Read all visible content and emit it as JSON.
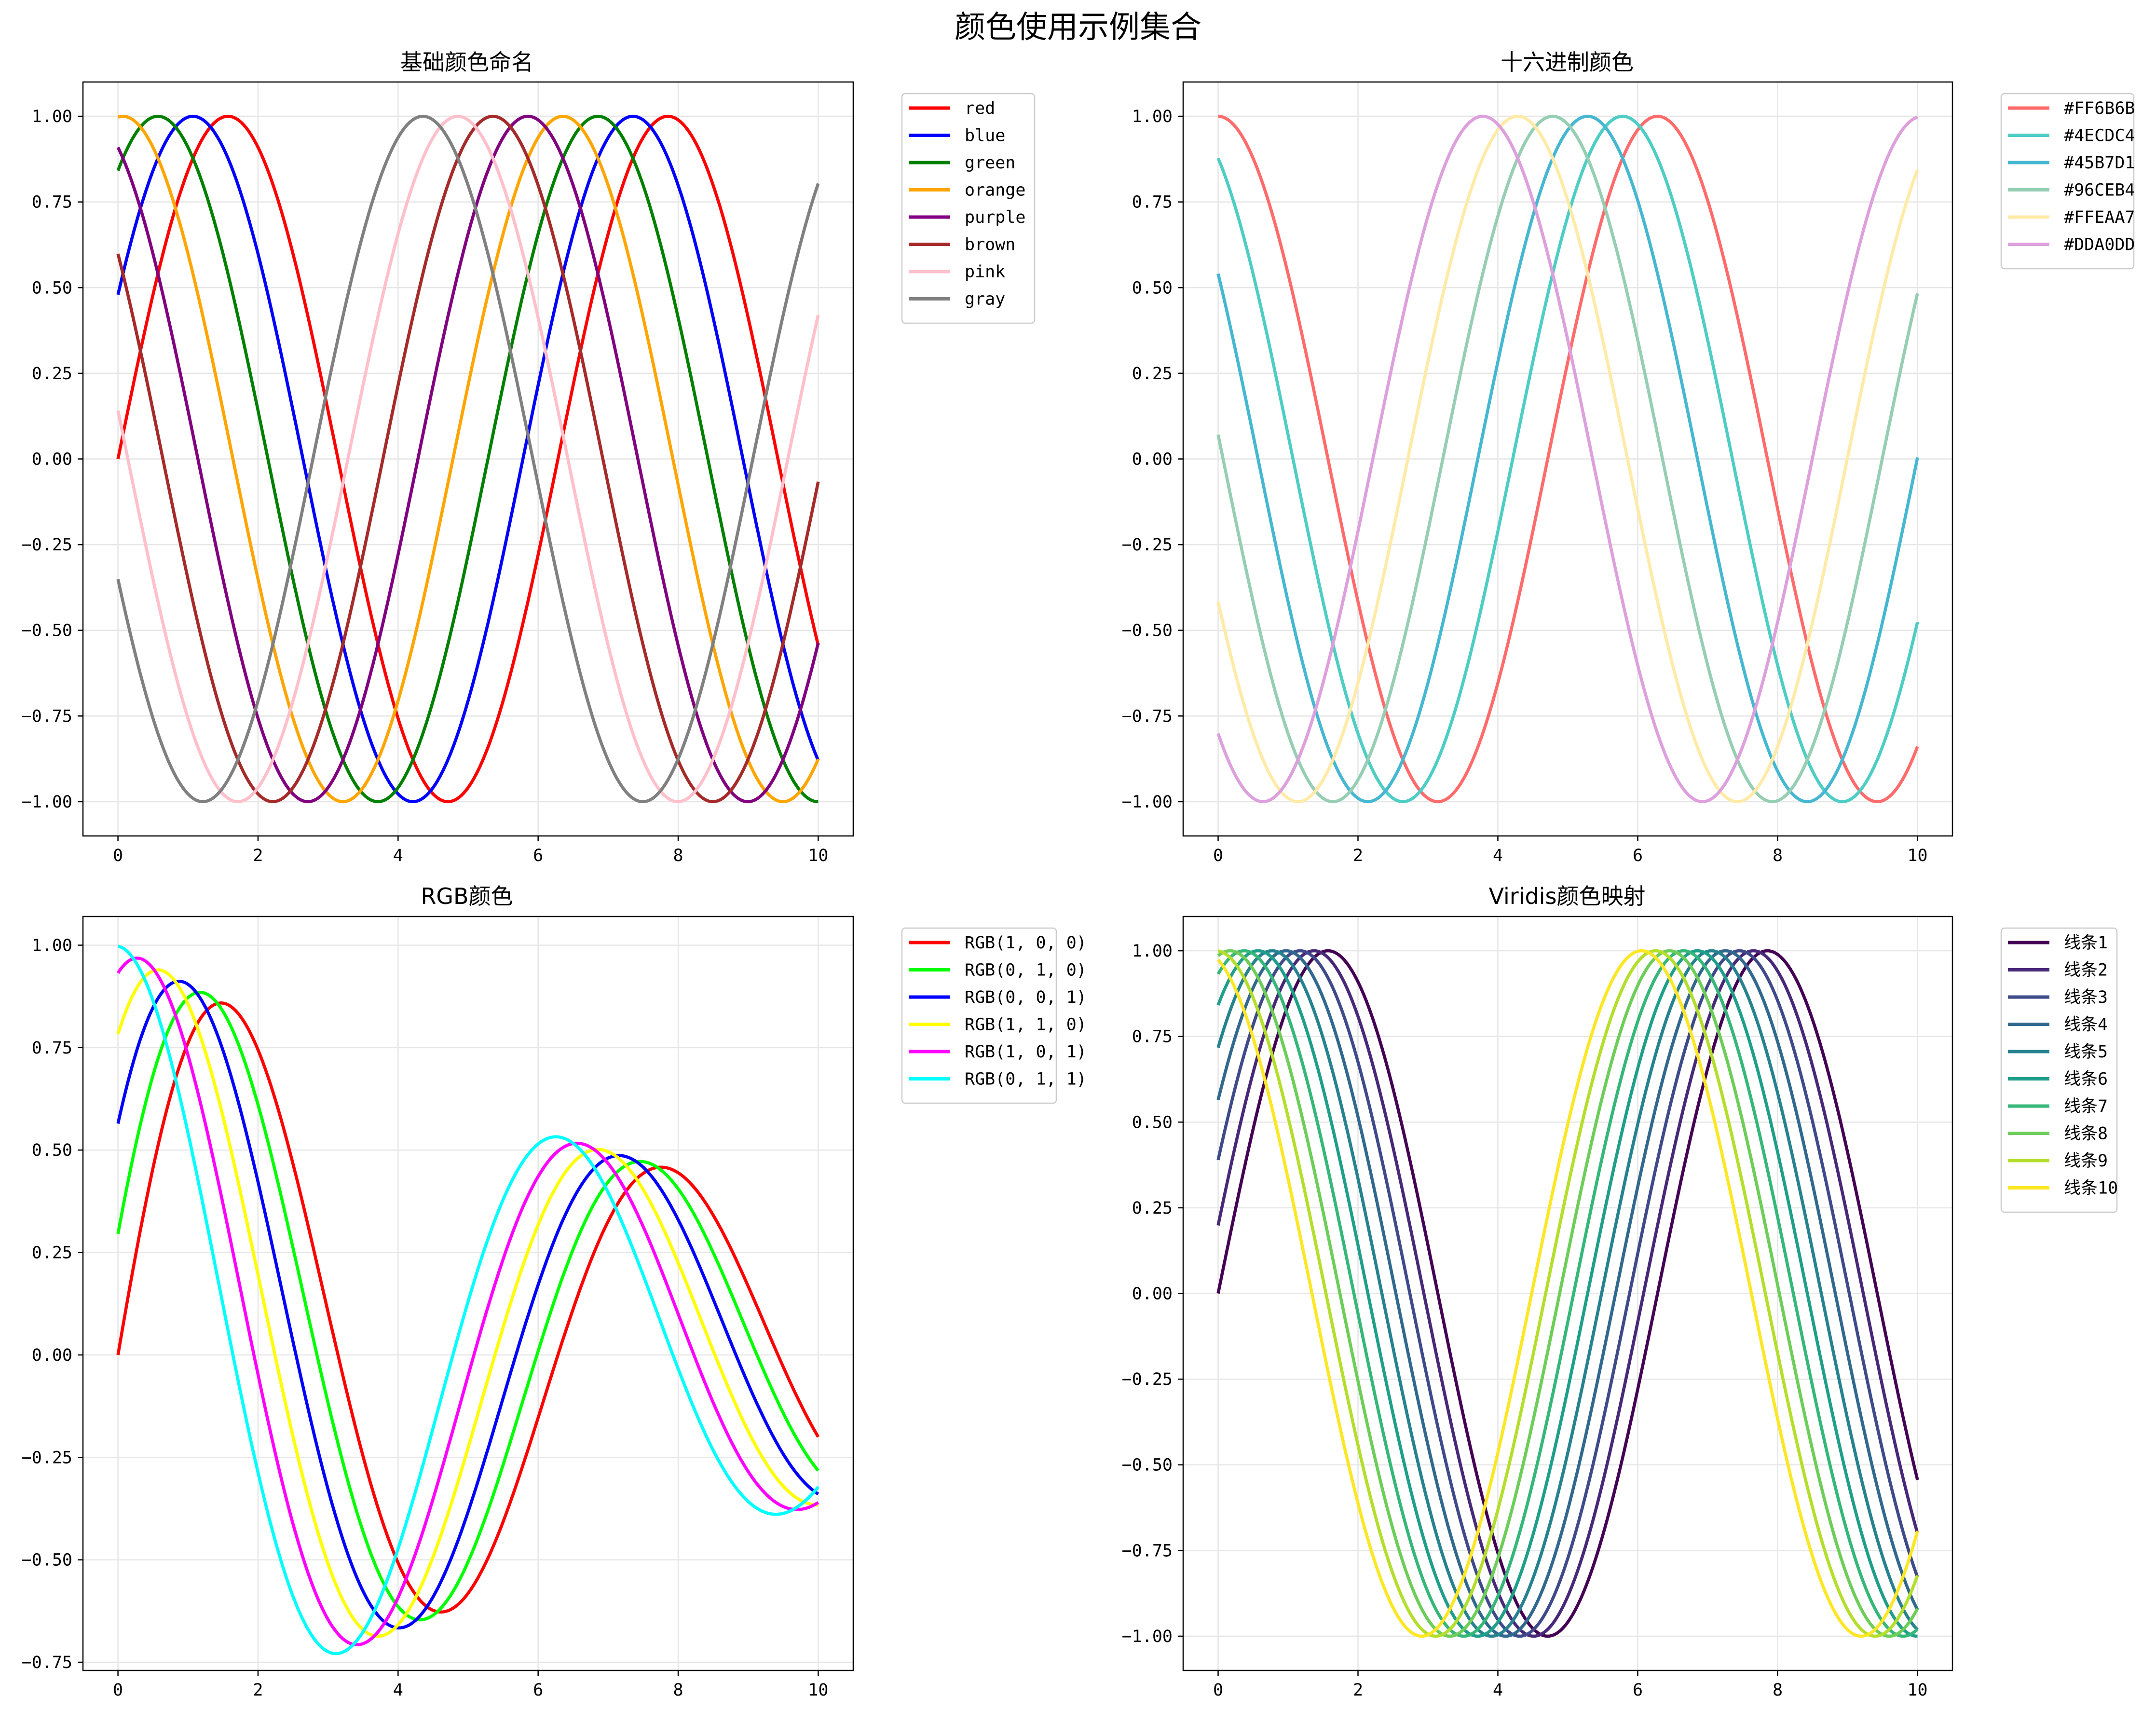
{
  "figure": {
    "title": "颜色使用示例集合"
  },
  "chart_data": [
    {
      "type": "line",
      "title": "基础颜色命名",
      "xlabel": "",
      "ylabel": "",
      "xlim": [
        -0.5,
        10.5
      ],
      "ylim": [
        -1.1,
        1.1
      ],
      "xticks": [
        "0",
        "2",
        "4",
        "6",
        "8",
        "10"
      ],
      "yticks": [
        "1.00",
        "0.75",
        "0.50",
        "0.25",
        "0.00",
        "−0.25",
        "−0.50",
        "−0.75",
        "−1.00"
      ],
      "grid": true,
      "legend": "outside upper right",
      "x_range": [
        0,
        10
      ],
      "series": [
        {
          "name": "red",
          "color": "#FF0000",
          "func": "sin",
          "amp": 1,
          "phase": 0.0
        },
        {
          "name": "blue",
          "color": "#0000FF",
          "func": "sin",
          "amp": 1,
          "phase": 0.5
        },
        {
          "name": "green",
          "color": "#008000",
          "func": "sin",
          "amp": 1,
          "phase": 1.0
        },
        {
          "name": "orange",
          "color": "#FFA500",
          "func": "sin",
          "amp": 1,
          "phase": 1.5
        },
        {
          "name": "purple",
          "color": "#800080",
          "func": "sin",
          "amp": 1,
          "phase": 2.0
        },
        {
          "name": "brown",
          "color": "#A52A2A",
          "func": "sin",
          "amp": 1,
          "phase": 2.5
        },
        {
          "name": "pink",
          "color": "#FFC0CB",
          "func": "sin",
          "amp": 1,
          "phase": 3.0
        },
        {
          "name": "gray",
          "color": "#808080",
          "func": "sin",
          "amp": 1,
          "phase": 3.5
        }
      ]
    },
    {
      "type": "line",
      "title": "十六进制颜色",
      "xlabel": "",
      "ylabel": "",
      "xlim": [
        -0.5,
        10.5
      ],
      "ylim": [
        -1.1,
        1.1
      ],
      "xticks": [
        "0",
        "2",
        "4",
        "6",
        "8",
        "10"
      ],
      "yticks": [
        "1.00",
        "0.75",
        "0.50",
        "0.25",
        "0.00",
        "−0.25",
        "−0.50",
        "−0.75",
        "−1.00"
      ],
      "grid": true,
      "legend": "outside upper right",
      "x_range": [
        0,
        10
      ],
      "series": [
        {
          "name": "#FF6B6B",
          "color": "#FF6B6B",
          "func": "cos",
          "amp": 1,
          "phase": 0.0
        },
        {
          "name": "#4ECDC4",
          "color": "#4ECDC4",
          "func": "cos",
          "amp": 1,
          "phase": 0.5
        },
        {
          "name": "#45B7D1",
          "color": "#45B7D1",
          "func": "cos",
          "amp": 1,
          "phase": 1.0
        },
        {
          "name": "#96CEB4",
          "color": "#96CEB4",
          "func": "cos",
          "amp": 1,
          "phase": 1.5
        },
        {
          "name": "#FFEAA7",
          "color": "#FFEAA7",
          "func": "cos",
          "amp": 1,
          "phase": 2.0
        },
        {
          "name": "#DDA0DD",
          "color": "#DDA0DD",
          "func": "cos",
          "amp": 1,
          "phase": 2.5
        }
      ]
    },
    {
      "type": "line",
      "title": "RGB颜色",
      "xlabel": "",
      "ylabel": "",
      "xlim": [
        -0.5,
        10.5
      ],
      "ylim": [
        -0.77,
        1.07
      ],
      "xticks": [
        "0",
        "2",
        "4",
        "6",
        "8",
        "10"
      ],
      "yticks": [
        "1.00",
        "0.75",
        "0.50",
        "0.25",
        "0.00",
        "−0.25",
        "−0.50",
        "−0.75"
      ],
      "grid": true,
      "legend": "outside upper right",
      "x_range": [
        0,
        10
      ],
      "series": [
        {
          "name": "RGB(1, 0, 0)",
          "color": "#FF0000",
          "func": "dsin",
          "amp": 1,
          "phase": 0.0,
          "decay": 0.1
        },
        {
          "name": "RGB(0, 1, 0)",
          "color": "#00FF00",
          "func": "dsin",
          "amp": 1,
          "phase": 0.3,
          "decay": 0.1
        },
        {
          "name": "RGB(0, 0, 1)",
          "color": "#0000FF",
          "func": "dsin",
          "amp": 1,
          "phase": 0.6,
          "decay": 0.1
        },
        {
          "name": "RGB(1, 1, 0)",
          "color": "#FFFF00",
          "func": "dsin",
          "amp": 1,
          "phase": 0.9,
          "decay": 0.1
        },
        {
          "name": "RGB(1, 0, 1)",
          "color": "#FF00FF",
          "func": "dsin",
          "amp": 1,
          "phase": 1.2,
          "decay": 0.1
        },
        {
          "name": "RGB(0, 1, 1)",
          "color": "#00FFFF",
          "func": "dsin",
          "amp": 1,
          "phase": 1.5,
          "decay": 0.1
        }
      ]
    },
    {
      "type": "line",
      "title": "Viridis颜色映射",
      "xlabel": "",
      "ylabel": "",
      "xlim": [
        -0.5,
        10.5
      ],
      "ylim": [
        -1.1,
        1.1
      ],
      "xticks": [
        "0",
        "2",
        "4",
        "6",
        "8",
        "10"
      ],
      "yticks": [
        "1.00",
        "0.75",
        "0.50",
        "0.25",
        "0.00",
        "−0.25",
        "−0.50",
        "−0.75",
        "−1.00"
      ],
      "grid": true,
      "legend": "outside upper right",
      "x_range": [
        0,
        10
      ],
      "series": [
        {
          "name": "线条1",
          "color": "#440154",
          "func": "sin",
          "amp": 1,
          "phase": 0.0
        },
        {
          "name": "线条2",
          "color": "#482878",
          "func": "sin",
          "amp": 1,
          "phase": 0.2
        },
        {
          "name": "线条3",
          "color": "#3E4A89",
          "func": "sin",
          "amp": 1,
          "phase": 0.4
        },
        {
          "name": "线条4",
          "color": "#31688E",
          "func": "sin",
          "amp": 1,
          "phase": 0.6
        },
        {
          "name": "线条5",
          "color": "#26828E",
          "func": "sin",
          "amp": 1,
          "phase": 0.8
        },
        {
          "name": "线条6",
          "color": "#1F9E89",
          "func": "sin",
          "amp": 1,
          "phase": 1.0
        },
        {
          "name": "线条7",
          "color": "#35B779",
          "func": "sin",
          "amp": 1,
          "phase": 1.2
        },
        {
          "name": "线条8",
          "color": "#6DCD59",
          "func": "sin",
          "amp": 1,
          "phase": 1.4
        },
        {
          "name": "线条9",
          "color": "#B4DE2C",
          "func": "sin",
          "amp": 1,
          "phase": 1.6
        },
        {
          "name": "线条10",
          "color": "#FDE725",
          "func": "sin",
          "amp": 1,
          "phase": 1.8
        }
      ]
    }
  ]
}
